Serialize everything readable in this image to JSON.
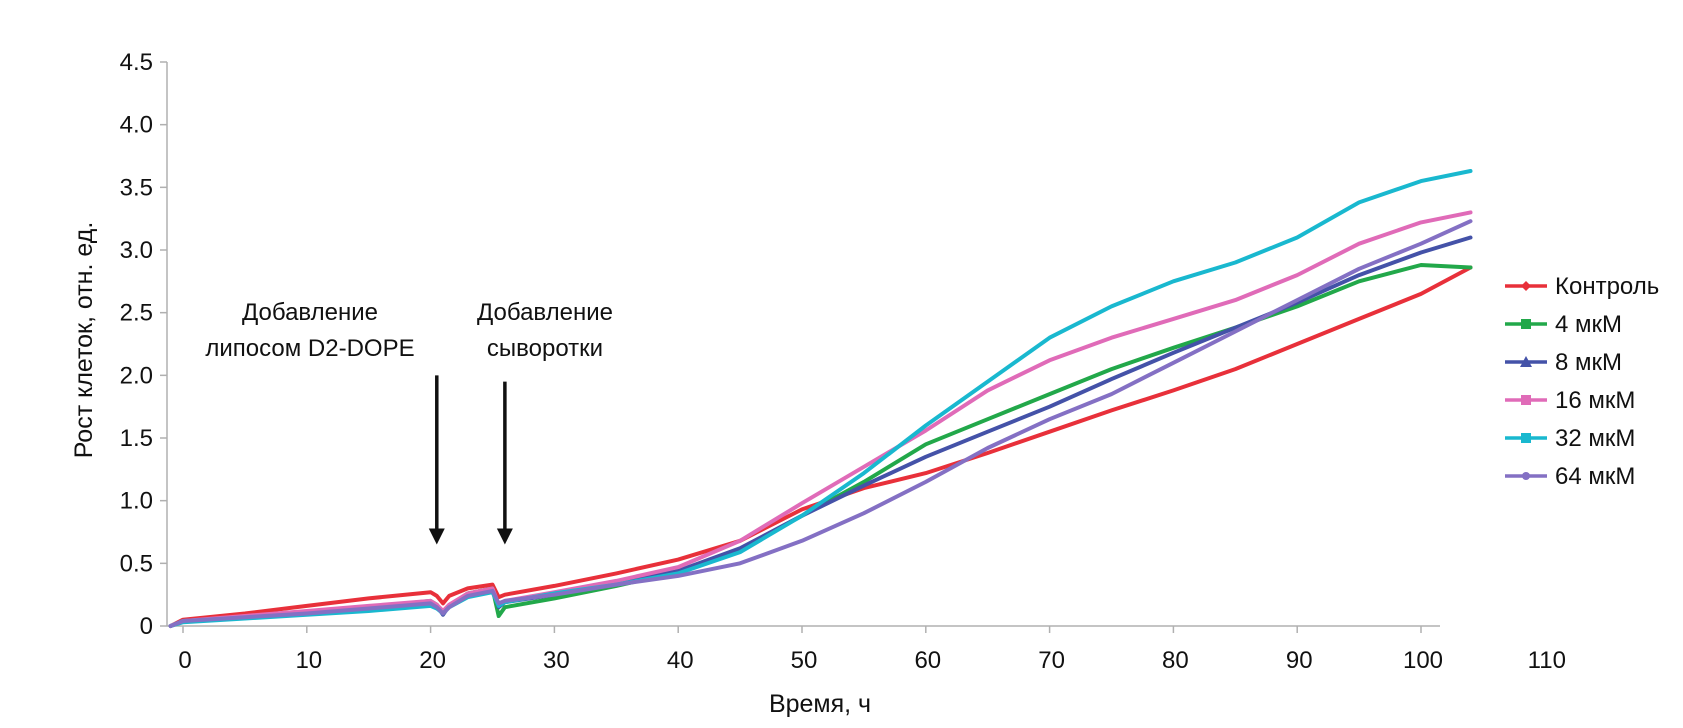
{
  "chart_data": {
    "type": "line",
    "title": "",
    "xlabel": "Время, ч",
    "ylabel": "Рост клеток, отн. ед.",
    "xlim": [
      -1,
      104
    ],
    "ylim": [
      0,
      4.5
    ],
    "x_ticks": [
      0,
      10,
      20,
      30,
      40,
      50,
      60,
      70,
      80,
      90,
      100,
      110
    ],
    "x_tick_labels": [
      "0",
      "10",
      "20",
      "30",
      "40",
      "50",
      "60",
      "70",
      "80",
      "90",
      "100",
      "110"
    ],
    "y_ticks": [
      0,
      0.5,
      1.0,
      1.5,
      2.0,
      2.5,
      3.0,
      3.5,
      4.0,
      4.5
    ],
    "y_tick_labels": [
      "0",
      "0.5",
      "1.0",
      "1.5",
      "2.0",
      "2.5",
      "3.0",
      "3.5",
      "4.0",
      "4.5"
    ],
    "legend_position": "right",
    "annotations": [
      {
        "lines": [
          "Добавление",
          "липосом D2-DOPE"
        ],
        "x": 20.5,
        "arrow_from": 2.0,
        "arrow_to": 0.65
      },
      {
        "lines": [
          "Добавление",
          "сыворотки"
        ],
        "x": 26,
        "arrow_from": 1.95,
        "arrow_to": 0.65
      }
    ],
    "x": [
      -1,
      0,
      5,
      10,
      15,
      20,
      20.5,
      21,
      21.5,
      23,
      25,
      25.5,
      26,
      30,
      35,
      40,
      45,
      50,
      55,
      60,
      65,
      70,
      75,
      80,
      85,
      90,
      95,
      100,
      104
    ],
    "series": [
      {
        "name": "Контроль",
        "color": "#e8303a",
        "marker": "diamond",
        "values": [
          0,
          0.05,
          0.1,
          0.16,
          0.22,
          0.27,
          0.24,
          0.18,
          0.24,
          0.3,
          0.33,
          0.23,
          0.25,
          0.32,
          0.42,
          0.53,
          0.68,
          0.93,
          1.1,
          1.22,
          1.38,
          1.55,
          1.72,
          1.88,
          2.05,
          2.25,
          2.45,
          2.65,
          2.86
        ]
      },
      {
        "name": "4 мкМ",
        "color": "#22a84a",
        "marker": "square",
        "values": [
          0,
          0.04,
          0.07,
          0.11,
          0.15,
          0.2,
          0.17,
          0.1,
          0.16,
          0.26,
          0.3,
          0.08,
          0.15,
          0.22,
          0.32,
          0.43,
          0.61,
          0.88,
          1.15,
          1.45,
          1.65,
          1.85,
          2.05,
          2.22,
          2.38,
          2.55,
          2.75,
          2.88,
          2.86
        ]
      },
      {
        "name": "8 мкМ",
        "color": "#4452a8",
        "marker": "triangle",
        "values": [
          0,
          0.04,
          0.07,
          0.11,
          0.15,
          0.19,
          0.16,
          0.09,
          0.16,
          0.25,
          0.29,
          0.15,
          0.19,
          0.25,
          0.34,
          0.44,
          0.62,
          0.88,
          1.12,
          1.35,
          1.55,
          1.75,
          1.97,
          2.18,
          2.38,
          2.58,
          2.8,
          2.98,
          3.1
        ]
      },
      {
        "name": "16 мкМ",
        "color": "#e06bb8",
        "marker": "square",
        "values": [
          0,
          0.04,
          0.08,
          0.12,
          0.16,
          0.2,
          0.17,
          0.12,
          0.17,
          0.26,
          0.3,
          0.17,
          0.2,
          0.27,
          0.36,
          0.47,
          0.68,
          0.98,
          1.27,
          1.56,
          1.88,
          2.12,
          2.3,
          2.45,
          2.6,
          2.8,
          3.05,
          3.22,
          3.3
        ]
      },
      {
        "name": "32 мкМ",
        "color": "#19b8cf",
        "marker": "square",
        "values": [
          0,
          0.03,
          0.06,
          0.09,
          0.12,
          0.16,
          0.14,
          0.1,
          0.15,
          0.23,
          0.27,
          0.16,
          0.19,
          0.26,
          0.33,
          0.42,
          0.59,
          0.88,
          1.22,
          1.6,
          1.95,
          2.3,
          2.55,
          2.75,
          2.9,
          3.1,
          3.38,
          3.55,
          3.63
        ]
      },
      {
        "name": "64 мкМ",
        "color": "#8470c4",
        "marker": "circle",
        "values": [
          0,
          0.04,
          0.07,
          0.1,
          0.14,
          0.18,
          0.15,
          0.1,
          0.15,
          0.24,
          0.28,
          0.18,
          0.2,
          0.25,
          0.33,
          0.4,
          0.5,
          0.68,
          0.9,
          1.15,
          1.42,
          1.65,
          1.85,
          2.1,
          2.35,
          2.6,
          2.85,
          3.05,
          3.23
        ]
      }
    ]
  }
}
